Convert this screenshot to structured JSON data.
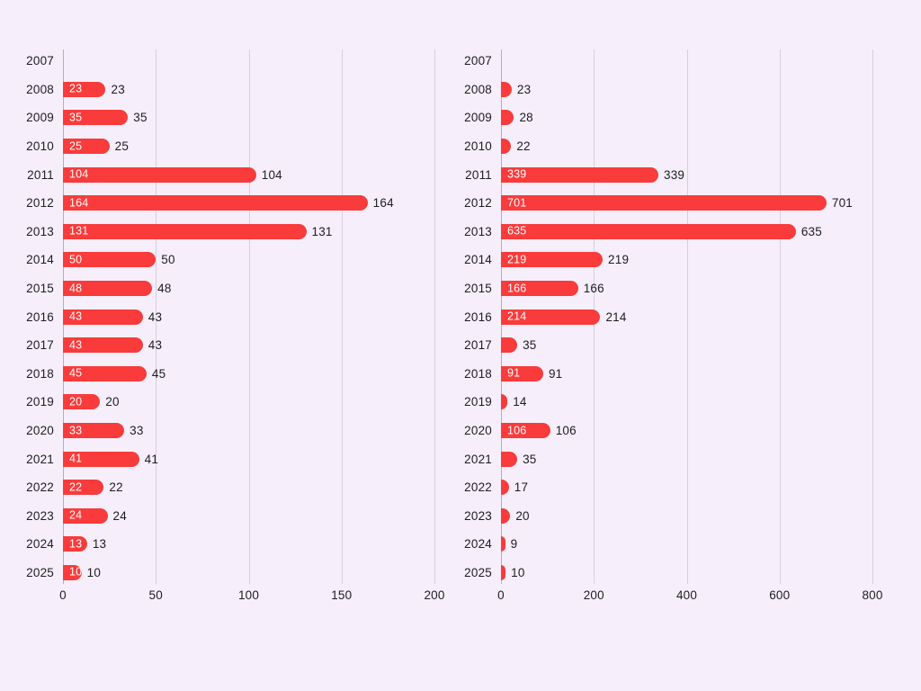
{
  "page": {
    "background_color": "#f6effb",
    "text_color": "#1c1c22"
  },
  "bar_style": {
    "color": "#f93b3b",
    "inside_label_color": "#ffffff",
    "outside_label_color": "#1c1c22"
  },
  "grid_style": {
    "line_color": "#d6cee0",
    "zero_line_color": "#b3adc0"
  },
  "chart_data": [
    {
      "type": "bar",
      "orientation": "horizontal",
      "position": "left",
      "categories": [
        "2007",
        "2008",
        "2009",
        "2010",
        "2011",
        "2012",
        "2013",
        "2014",
        "2015",
        "2016",
        "2017",
        "2018",
        "2019",
        "2020",
        "2021",
        "2022",
        "2023",
        "2024",
        "2025"
      ],
      "values": [
        null,
        23,
        35,
        25,
        104,
        164,
        131,
        50,
        48,
        43,
        43,
        45,
        20,
        33,
        41,
        22,
        24,
        13,
        10
      ],
      "xlim": [
        0,
        200
      ],
      "xticks": [
        0,
        50,
        100,
        150,
        200
      ],
      "grid": true,
      "legend": false,
      "value_labels": "inside bar (white) and right of bar (dark)"
    },
    {
      "type": "bar",
      "orientation": "horizontal",
      "position": "right",
      "categories": [
        "2007",
        "2008",
        "2009",
        "2010",
        "2011",
        "2012",
        "2013",
        "2014",
        "2015",
        "2016",
        "2017",
        "2018",
        "2019",
        "2020",
        "2021",
        "2022",
        "2023",
        "2024",
        "2025"
      ],
      "values": [
        null,
        23,
        28,
        22,
        339,
        701,
        635,
        219,
        166,
        214,
        35,
        91,
        14,
        106,
        35,
        17,
        20,
        9,
        10
      ],
      "xlim": [
        0,
        800
      ],
      "xticks": [
        0,
        200,
        400,
        600,
        800
      ],
      "grid": true,
      "legend": false,
      "value_labels": "inside bar (white, only when it fits) and right of bar (dark)"
    }
  ]
}
